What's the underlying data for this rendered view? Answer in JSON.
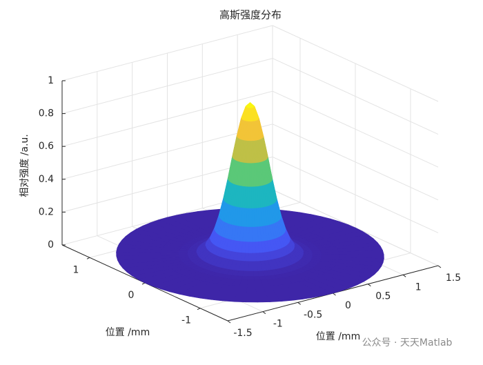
{
  "chart_data": {
    "type": "surface",
    "title": "高斯强度分布",
    "x_label": "位置 /mm",
    "y_label": "位置 /mm",
    "z_label": "相对强度 /a.u.",
    "r": [
      0,
      0.05,
      0.1,
      0.15,
      0.2,
      0.25,
      0.3,
      0.35,
      0.4,
      0.45,
      0.5,
      0.6,
      0.7,
      0.8,
      1.0,
      1.5
    ],
    "values": [
      0.93,
      0.905,
      0.833,
      0.724,
      0.598,
      0.464,
      0.342,
      0.238,
      0.157,
      0.098,
      0.058,
      0.017,
      0.004,
      0.001,
      0,
      0
    ],
    "xlim": [
      -1.5,
      1.5
    ],
    "xticks": [
      -1.5,
      -1,
      -0.5,
      0,
      0.5,
      1,
      1.5
    ],
    "ylim": [
      -1.5,
      1.5
    ],
    "yticks": [
      -1,
      0,
      1
    ],
    "zlim": [
      0,
      1
    ],
    "zticks": [
      0,
      0.2,
      0.4,
      0.6,
      0.8,
      1
    ],
    "grid": true,
    "colormap": [
      "#3e26a8",
      "#4752f4",
      "#2f87f5",
      "#12aadc",
      "#2ac3a0",
      "#81cc59",
      "#dcbb3f",
      "#fcc835",
      "#f9fb0e"
    ],
    "watermark": "公众号 · 天天Matlab"
  }
}
